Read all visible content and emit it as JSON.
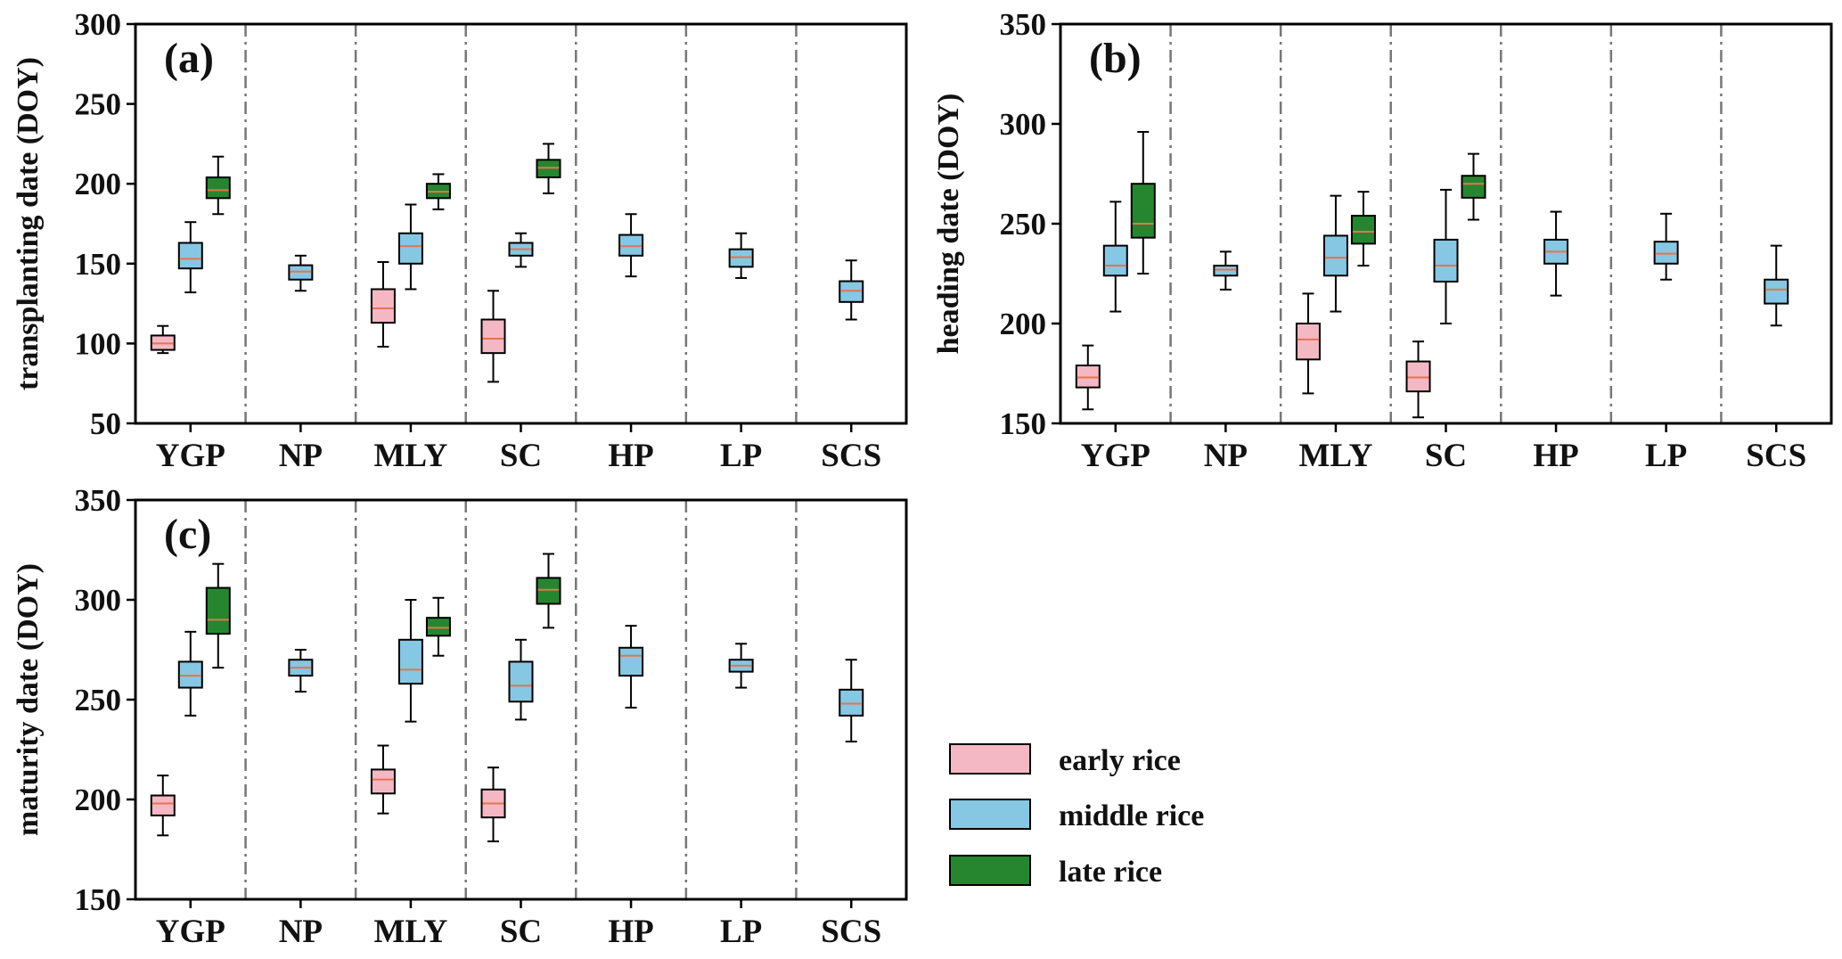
{
  "legend": {
    "items": [
      {
        "key": "early",
        "label": "early rice",
        "color": "#f4b8c4"
      },
      {
        "key": "middle",
        "label": "middle rice",
        "color": "#86c7e3"
      },
      {
        "key": "late",
        "label": "late rice",
        "color": "#268630"
      }
    ]
  },
  "colors": {
    "median": "#e8734a",
    "whisker": "#000000",
    "separator": "#777777"
  },
  "chart_data": [
    {
      "type": "box",
      "panel_label": "(a)",
      "ylabel": "transplanting date (DOY)",
      "ylim": [
        50,
        300
      ],
      "yticks": [
        50,
        100,
        150,
        200,
        250,
        300
      ],
      "categories": [
        "YGP",
        "NP",
        "MLY",
        "SC",
        "HP",
        "LP",
        "SCS"
      ],
      "boxes": [
        {
          "region": "YGP",
          "series": "early",
          "min": 94,
          "q1": 96,
          "median": 100,
          "q3": 105,
          "max": 111
        },
        {
          "region": "YGP",
          "series": "middle",
          "min": 132,
          "q1": 147,
          "median": 153,
          "q3": 163,
          "max": 176
        },
        {
          "region": "YGP",
          "series": "late",
          "min": 181,
          "q1": 191,
          "median": 196,
          "q3": 204,
          "max": 217
        },
        {
          "region": "NP",
          "series": "middle",
          "min": 133,
          "q1": 140,
          "median": 145,
          "q3": 149,
          "max": 155
        },
        {
          "region": "MLY",
          "series": "early",
          "min": 98,
          "q1": 113,
          "median": 122,
          "q3": 134,
          "max": 151
        },
        {
          "region": "MLY",
          "series": "middle",
          "min": 134,
          "q1": 150,
          "median": 161,
          "q3": 169,
          "max": 187
        },
        {
          "region": "MLY",
          "series": "late",
          "min": 184,
          "q1": 191,
          "median": 195,
          "q3": 200,
          "max": 206
        },
        {
          "region": "SC",
          "series": "early",
          "min": 76,
          "q1": 94,
          "median": 103,
          "q3": 115,
          "max": 133
        },
        {
          "region": "SC",
          "series": "middle",
          "min": 148,
          "q1": 155,
          "median": 159,
          "q3": 163,
          "max": 169
        },
        {
          "region": "SC",
          "series": "late",
          "min": 194,
          "q1": 204,
          "median": 210,
          "q3": 215,
          "max": 225
        },
        {
          "region": "HP",
          "series": "middle",
          "min": 142,
          "q1": 155,
          "median": 161,
          "q3": 168,
          "max": 181
        },
        {
          "region": "LP",
          "series": "middle",
          "min": 141,
          "q1": 148,
          "median": 154,
          "q3": 159,
          "max": 169
        },
        {
          "region": "SCS",
          "series": "middle",
          "min": 115,
          "q1": 126,
          "median": 133,
          "q3": 139,
          "max": 152
        }
      ]
    },
    {
      "type": "box",
      "panel_label": "(b)",
      "ylabel": "heading date (DOY)",
      "ylim": [
        150,
        350
      ],
      "yticks": [
        150,
        200,
        250,
        300,
        350
      ],
      "categories": [
        "YGP",
        "NP",
        "MLY",
        "SC",
        "HP",
        "LP",
        "SCS"
      ],
      "boxes": [
        {
          "region": "YGP",
          "series": "early",
          "min": 157,
          "q1": 168,
          "median": 173,
          "q3": 179,
          "max": 189
        },
        {
          "region": "YGP",
          "series": "middle",
          "min": 206,
          "q1": 224,
          "median": 229,
          "q3": 239,
          "max": 261
        },
        {
          "region": "YGP",
          "series": "late",
          "min": 225,
          "q1": 243,
          "median": 250,
          "q3": 270,
          "max": 296
        },
        {
          "region": "NP",
          "series": "middle",
          "min": 217,
          "q1": 224,
          "median": 227,
          "q3": 229,
          "max": 236
        },
        {
          "region": "MLY",
          "series": "early",
          "min": 165,
          "q1": 182,
          "median": 192,
          "q3": 200,
          "max": 215
        },
        {
          "region": "MLY",
          "series": "middle",
          "min": 206,
          "q1": 224,
          "median": 233,
          "q3": 244,
          "max": 264
        },
        {
          "region": "MLY",
          "series": "late",
          "min": 229,
          "q1": 240,
          "median": 246,
          "q3": 254,
          "max": 266
        },
        {
          "region": "SC",
          "series": "early",
          "min": 153,
          "q1": 166,
          "median": 173,
          "q3": 181,
          "max": 191
        },
        {
          "region": "SC",
          "series": "middle",
          "min": 200,
          "q1": 221,
          "median": 229,
          "q3": 242,
          "max": 267
        },
        {
          "region": "SC",
          "series": "late",
          "min": 252,
          "q1": 263,
          "median": 270,
          "q3": 274,
          "max": 285
        },
        {
          "region": "HP",
          "series": "middle",
          "min": 214,
          "q1": 230,
          "median": 236,
          "q3": 242,
          "max": 256
        },
        {
          "region": "LP",
          "series": "middle",
          "min": 222,
          "q1": 230,
          "median": 235,
          "q3": 241,
          "max": 255
        },
        {
          "region": "SCS",
          "series": "middle",
          "min": 199,
          "q1": 210,
          "median": 217,
          "q3": 222,
          "max": 239
        }
      ]
    },
    {
      "type": "box",
      "panel_label": "(c)",
      "ylabel": "maturity date (DOY)",
      "ylim": [
        150,
        350
      ],
      "yticks": [
        150,
        200,
        250,
        300,
        350
      ],
      "categories": [
        "YGP",
        "NP",
        "MLY",
        "SC",
        "HP",
        "LP",
        "SCS"
      ],
      "boxes": [
        {
          "region": "YGP",
          "series": "early",
          "min": 182,
          "q1": 192,
          "median": 198,
          "q3": 202,
          "max": 212
        },
        {
          "region": "YGP",
          "series": "middle",
          "min": 242,
          "q1": 256,
          "median": 262,
          "q3": 269,
          "max": 284
        },
        {
          "region": "YGP",
          "series": "late",
          "min": 266,
          "q1": 283,
          "median": 290,
          "q3": 306,
          "max": 318
        },
        {
          "region": "NP",
          "series": "middle",
          "min": 254,
          "q1": 262,
          "median": 266,
          "q3": 270,
          "max": 275
        },
        {
          "region": "MLY",
          "series": "early",
          "min": 193,
          "q1": 203,
          "median": 210,
          "q3": 215,
          "max": 227
        },
        {
          "region": "MLY",
          "series": "middle",
          "min": 239,
          "q1": 258,
          "median": 265,
          "q3": 280,
          "max": 300
        },
        {
          "region": "MLY",
          "series": "late",
          "min": 272,
          "q1": 282,
          "median": 286,
          "q3": 291,
          "max": 301
        },
        {
          "region": "SC",
          "series": "early",
          "min": 179,
          "q1": 191,
          "median": 198,
          "q3": 205,
          "max": 216
        },
        {
          "region": "SC",
          "series": "middle",
          "min": 240,
          "q1": 249,
          "median": 257,
          "q3": 269,
          "max": 280
        },
        {
          "region": "SC",
          "series": "late",
          "min": 286,
          "q1": 298,
          "median": 305,
          "q3": 311,
          "max": 323
        },
        {
          "region": "HP",
          "series": "middle",
          "min": 246,
          "q1": 262,
          "median": 272,
          "q3": 276,
          "max": 287
        },
        {
          "region": "LP",
          "series": "middle",
          "min": 256,
          "q1": 264,
          "median": 267,
          "q3": 270,
          "max": 278
        },
        {
          "region": "SCS",
          "series": "middle",
          "min": 229,
          "q1": 242,
          "median": 248,
          "q3": 255,
          "max": 270
        }
      ]
    }
  ]
}
